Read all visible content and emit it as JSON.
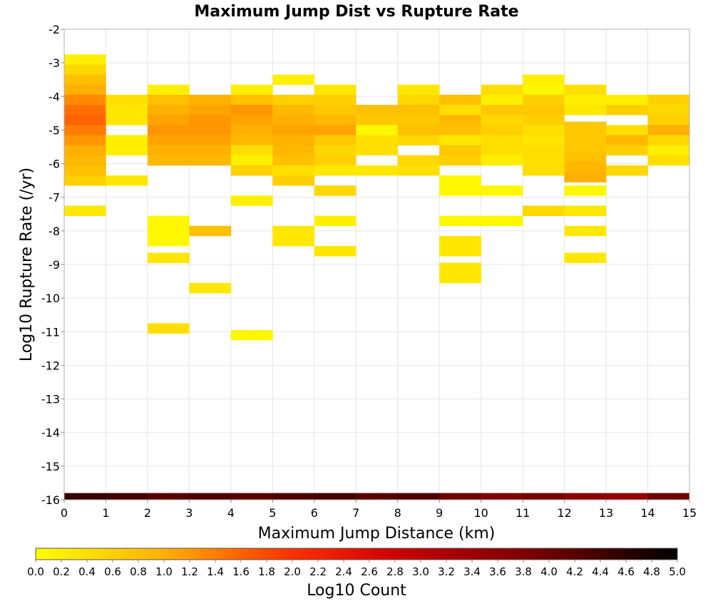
{
  "chart_data": {
    "type": "heatmap",
    "title": "Maximum Jump Dist vs Rupture Rate",
    "xlabel": "Maximum Jump Distance (km)",
    "ylabel": "Log10 Rupture Rate (/yr)",
    "xlim": [
      0,
      15
    ],
    "ylim": [
      -16,
      -2
    ],
    "x_ticks": [
      0,
      1,
      2,
      3,
      4,
      5,
      6,
      7,
      8,
      9,
      10,
      11,
      12,
      13,
      14,
      15
    ],
    "y_ticks": [
      -2,
      -3,
      -4,
      -5,
      -6,
      -7,
      -8,
      -9,
      -10,
      -11,
      -12,
      -13,
      -14,
      -15,
      -16
    ],
    "grid": true,
    "bin_width_x": 1,
    "bin_height_y": 0.3,
    "cells_note": "each cell: [x_bin_start, y_bin_center, log10_count]",
    "cells": [
      [
        0,
        -2.9,
        0.2
      ],
      [
        0,
        -3.2,
        0.5
      ],
      [
        0,
        -3.5,
        0.8
      ],
      [
        0,
        -3.8,
        1.0
      ],
      [
        0,
        -4.1,
        1.3
      ],
      [
        0,
        -4.4,
        1.5
      ],
      [
        0,
        -4.7,
        1.6
      ],
      [
        0,
        -5.0,
        1.4
      ],
      [
        0,
        -5.3,
        1.2
      ],
      [
        0,
        -5.6,
        1.0
      ],
      [
        0,
        -5.9,
        0.9
      ],
      [
        0,
        -6.2,
        0.8
      ],
      [
        0,
        -6.5,
        0.6
      ],
      [
        0,
        -7.4,
        0.3
      ],
      [
        1,
        -4.1,
        0.4
      ],
      [
        1,
        -4.4,
        0.3
      ],
      [
        1,
        -4.7,
        0.3
      ],
      [
        1,
        -5.3,
        0.2
      ],
      [
        1,
        -5.6,
        0.2
      ],
      [
        1,
        -6.5,
        0.3
      ],
      [
        2,
        -3.8,
        0.2
      ],
      [
        2,
        -4.1,
        0.8
      ],
      [
        2,
        -4.4,
        1.0
      ],
      [
        2,
        -4.7,
        1.1
      ],
      [
        2,
        -5.0,
        1.2
      ],
      [
        2,
        -5.3,
        1.1
      ],
      [
        2,
        -5.6,
        1.0
      ],
      [
        2,
        -5.9,
        0.9
      ],
      [
        2,
        -7.7,
        0.1
      ],
      [
        2,
        -8.0,
        0.1
      ],
      [
        2,
        -8.3,
        0.1
      ],
      [
        2,
        -8.8,
        0.3
      ],
      [
        2,
        -10.9,
        0.4
      ],
      [
        3,
        -4.1,
        1.0
      ],
      [
        3,
        -4.4,
        1.1
      ],
      [
        3,
        -4.7,
        1.2
      ],
      [
        3,
        -5.0,
        1.2
      ],
      [
        3,
        -5.3,
        1.1
      ],
      [
        3,
        -5.6,
        1.0
      ],
      [
        3,
        -5.9,
        0.9
      ],
      [
        3,
        -8.0,
        0.8
      ],
      [
        3,
        -9.7,
        0.3
      ],
      [
        4,
        -3.8,
        0.2
      ],
      [
        4,
        -4.1,
        0.8
      ],
      [
        4,
        -4.4,
        1.2
      ],
      [
        4,
        -4.7,
        1.1
      ],
      [
        4,
        -5.0,
        1.0
      ],
      [
        4,
        -5.3,
        0.9
      ],
      [
        4,
        -5.6,
        0.4
      ],
      [
        4,
        -5.9,
        0.2
      ],
      [
        4,
        -6.2,
        0.6
      ],
      [
        4,
        -7.1,
        0.2
      ],
      [
        4,
        -11.1,
        0.1
      ],
      [
        5,
        -3.5,
        0.2
      ],
      [
        5,
        -4.1,
        0.6
      ],
      [
        5,
        -4.4,
        0.9
      ],
      [
        5,
        -4.7,
        1.0
      ],
      [
        5,
        -5.0,
        1.1
      ],
      [
        5,
        -5.3,
        1.0
      ],
      [
        5,
        -5.6,
        0.9
      ],
      [
        5,
        -5.9,
        0.8
      ],
      [
        5,
        -6.2,
        0.4
      ],
      [
        5,
        -6.5,
        0.6
      ],
      [
        5,
        -8.0,
        0.3
      ],
      [
        5,
        -8.3,
        0.3
      ],
      [
        6,
        -3.8,
        0.3
      ],
      [
        6,
        -4.1,
        0.6
      ],
      [
        6,
        -4.4,
        0.7
      ],
      [
        6,
        -4.7,
        0.9
      ],
      [
        6,
        -5.0,
        1.1
      ],
      [
        6,
        -5.3,
        0.7
      ],
      [
        6,
        -5.6,
        0.5
      ],
      [
        6,
        -5.9,
        0.6
      ],
      [
        6,
        -6.2,
        0.3
      ],
      [
        6,
        -6.8,
        0.5
      ],
      [
        6,
        -7.7,
        0.2
      ],
      [
        6,
        -8.6,
        0.3
      ],
      [
        7,
        -4.4,
        0.8
      ],
      [
        7,
        -4.7,
        0.7
      ],
      [
        7,
        -5.0,
        0.1
      ],
      [
        7,
        -5.3,
        0.4
      ],
      [
        7,
        -5.6,
        0.4
      ],
      [
        7,
        -6.2,
        0.3
      ],
      [
        8,
        -3.8,
        0.3
      ],
      [
        8,
        -4.1,
        0.5
      ],
      [
        8,
        -4.4,
        0.8
      ],
      [
        8,
        -4.7,
        0.7
      ],
      [
        8,
        -5.0,
        0.8
      ],
      [
        8,
        -5.3,
        0.5
      ],
      [
        8,
        -5.9,
        0.5
      ],
      [
        8,
        -6.2,
        0.4
      ],
      [
        9,
        -4.1,
        0.8
      ],
      [
        9,
        -4.4,
        0.4
      ],
      [
        9,
        -4.7,
        0.9
      ],
      [
        9,
        -5.0,
        0.8
      ],
      [
        9,
        -5.3,
        0.3
      ],
      [
        9,
        -5.6,
        0.7
      ],
      [
        9,
        -5.9,
        0.6
      ],
      [
        9,
        -6.5,
        0.1
      ],
      [
        9,
        -6.8,
        0.1
      ],
      [
        9,
        -7.7,
        0.1
      ],
      [
        9,
        -8.3,
        0.3
      ],
      [
        9,
        -8.6,
        0.3
      ],
      [
        9,
        -9.1,
        0.3
      ],
      [
        9,
        -9.4,
        0.3
      ],
      [
        10,
        -3.8,
        0.4
      ],
      [
        10,
        -4.1,
        0.2
      ],
      [
        10,
        -4.4,
        0.7
      ],
      [
        10,
        -4.7,
        0.5
      ],
      [
        10,
        -5.0,
        0.6
      ],
      [
        10,
        -5.3,
        0.4
      ],
      [
        10,
        -5.6,
        0.4
      ],
      [
        10,
        -5.9,
        0.2
      ],
      [
        10,
        -6.8,
        0.1
      ],
      [
        10,
        -7.7,
        0.1
      ],
      [
        11,
        -3.5,
        0.2
      ],
      [
        11,
        -3.8,
        0.1
      ],
      [
        11,
        -4.1,
        0.6
      ],
      [
        11,
        -4.4,
        0.7
      ],
      [
        11,
        -4.7,
        0.6
      ],
      [
        11,
        -5.0,
        0.4
      ],
      [
        11,
        -5.3,
        0.3
      ],
      [
        11,
        -5.6,
        0.4
      ],
      [
        11,
        -5.9,
        0.4
      ],
      [
        11,
        -6.2,
        0.4
      ],
      [
        11,
        -7.4,
        0.5
      ],
      [
        12,
        -3.8,
        0.4
      ],
      [
        12,
        -4.1,
        0.2
      ],
      [
        12,
        -4.4,
        0.3
      ],
      [
        12,
        -4.9,
        0.7
      ],
      [
        12,
        -5.2,
        0.7
      ],
      [
        12,
        -5.5,
        0.7
      ],
      [
        12,
        -5.8,
        0.8
      ],
      [
        12,
        -6.1,
        0.9
      ],
      [
        12,
        -6.4,
        1.0
      ],
      [
        12,
        -6.8,
        0.1
      ],
      [
        12,
        -7.4,
        0.3
      ],
      [
        12,
        -8.0,
        0.3
      ],
      [
        12,
        -8.8,
        0.3
      ],
      [
        13,
        -4.1,
        0.2
      ],
      [
        13,
        -4.4,
        0.6
      ],
      [
        13,
        -5.0,
        0.4
      ],
      [
        13,
        -5.3,
        0.9
      ],
      [
        13,
        -5.6,
        0.6
      ],
      [
        13,
        -6.2,
        0.5
      ],
      [
        14,
        -4.1,
        0.6
      ],
      [
        14,
        -4.4,
        0.5
      ],
      [
        14,
        -4.7,
        0.6
      ],
      [
        14,
        -5.0,
        1.0
      ],
      [
        14,
        -5.3,
        0.5
      ],
      [
        14,
        -5.6,
        0.2
      ],
      [
        14,
        -5.9,
        0.4
      ]
    ],
    "bottom_row_note": "cells at y = -16 for x bins 0..14",
    "bottom_row_y": -16,
    "bottom_row_values": [
      4.5,
      4.4,
      4.2,
      4.3,
      4.2,
      4.3,
      4.4,
      4.2,
      4.3,
      4.0,
      3.8,
      3.9,
      3.6,
      3.5,
      4.0
    ],
    "colorbar": {
      "label": "Log10 Count",
      "range": [
        0.0,
        5.0
      ],
      "tick_labels": [
        "0.0",
        "0.2",
        "0.4",
        "0.6",
        "0.8",
        "1.0",
        "1.2",
        "1.4",
        "1.6",
        "1.8",
        "2.0",
        "2.2",
        "2.4",
        "2.6",
        "2.8",
        "3.0",
        "3.2",
        "3.4",
        "3.6",
        "3.8",
        "4.0",
        "4.2",
        "4.4",
        "4.6",
        "4.8",
        "5.0"
      ],
      "stops": [
        {
          "v": 0.0,
          "color": "#ffff00"
        },
        {
          "v": 1.0,
          "color": "#ffb000"
        },
        {
          "v": 2.0,
          "color": "#ff3000"
        },
        {
          "v": 2.8,
          "color": "#cc0000"
        },
        {
          "v": 4.0,
          "color": "#6e0000"
        },
        {
          "v": 5.0,
          "color": "#000000"
        }
      ]
    }
  }
}
